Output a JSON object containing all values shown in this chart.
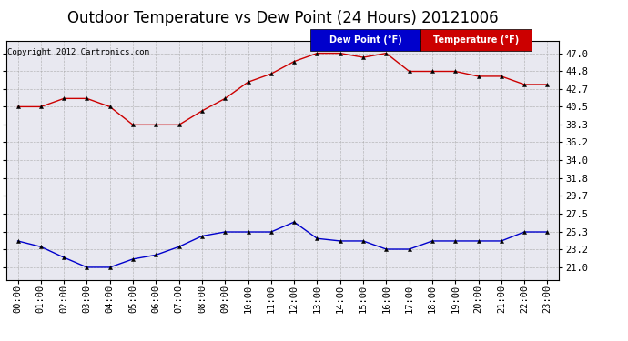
{
  "title": "Outdoor Temperature vs Dew Point (24 Hours) 20121006",
  "copyright_text": "Copyright 2012 Cartronics.com",
  "x_labels": [
    "00:00",
    "01:00",
    "02:00",
    "03:00",
    "04:00",
    "05:00",
    "06:00",
    "07:00",
    "08:00",
    "09:00",
    "10:00",
    "11:00",
    "12:00",
    "13:00",
    "14:00",
    "15:00",
    "16:00",
    "17:00",
    "18:00",
    "19:00",
    "20:00",
    "21:00",
    "22:00",
    "23:00"
  ],
  "temperature": [
    40.5,
    40.5,
    41.5,
    41.5,
    40.5,
    38.3,
    38.3,
    38.3,
    40.0,
    41.5,
    43.5,
    44.5,
    46.0,
    47.0,
    47.0,
    46.5,
    47.0,
    44.8,
    44.8,
    44.8,
    44.2,
    44.2,
    43.2,
    43.2
  ],
  "dew_point": [
    24.2,
    23.5,
    22.2,
    21.0,
    21.0,
    22.0,
    22.5,
    23.5,
    24.8,
    25.3,
    25.3,
    25.3,
    26.5,
    24.5,
    24.2,
    24.2,
    23.2,
    23.2,
    24.2,
    24.2,
    24.2,
    24.2,
    25.3,
    25.3
  ],
  "temp_color": "#cc0000",
  "dew_color": "#0000cc",
  "y_ticks": [
    21.0,
    23.2,
    25.3,
    27.5,
    29.7,
    31.8,
    34.0,
    36.2,
    38.3,
    40.5,
    42.7,
    44.8,
    47.0
  ],
  "ylim": [
    19.5,
    48.5
  ],
  "bg_color": "#ffffff",
  "plot_bg_color": "#e8e8f0",
  "grid_color": "#aaaaaa",
  "legend_dew_bg": "#0000cc",
  "legend_temp_bg": "#cc0000",
  "title_fontsize": 12,
  "tick_fontsize": 7.5,
  "copyright_fontsize": 6.5,
  "markersize": 3
}
